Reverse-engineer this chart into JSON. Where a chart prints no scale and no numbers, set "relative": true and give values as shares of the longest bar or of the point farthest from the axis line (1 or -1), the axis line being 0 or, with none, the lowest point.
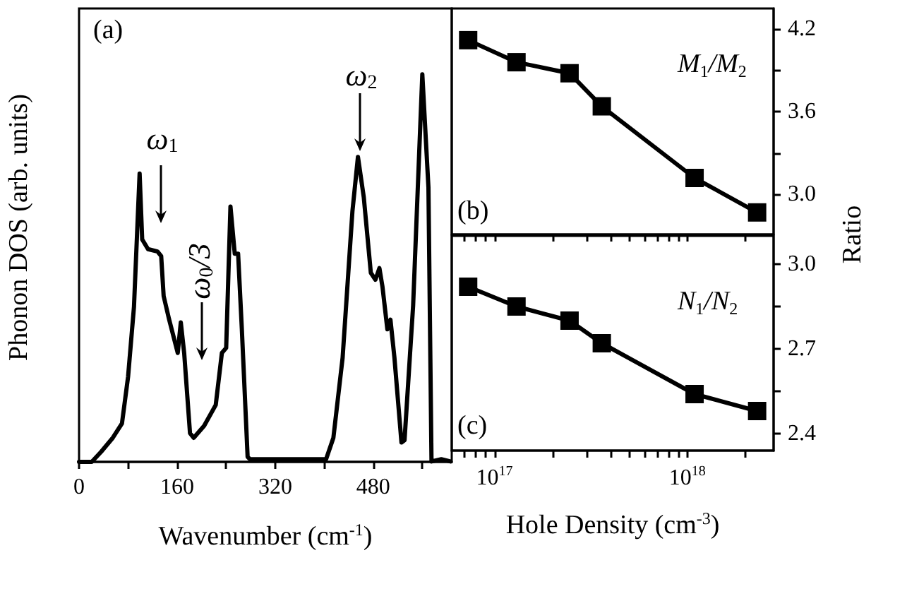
{
  "chart_data": [
    {
      "type": "line",
      "relative": true,
      "xlabel": "Wavenumber (cm$^{-1}$)",
      "ylabel": "Phonon DOS (arb. units)",
      "xlim": [
        0,
        608
      ],
      "xticks": [
        0,
        {
          "value": 80,
          "label": null
        },
        160,
        {
          "value": 240,
          "label": null
        },
        320,
        {
          "value": 400,
          "label": null
        },
        480,
        {
          "value": 560,
          "label": null
        }
      ],
      "tick_labels": "x",
      "marker": "none",
      "line_style": "solid",
      "annotations": [
        "(a)",
        "ω$_{1}$",
        "ω$_{0}$/3",
        "ω$_{2}$"
      ],
      "series": [
        {
          "color": "#000000",
          "x": [
            0,
            20.7,
            36,
            55,
            70,
            80,
            89.6,
            98.8,
            103,
            112.5,
            128,
            134,
            138,
            147,
            161,
            166,
            171.5,
            181,
            187,
            204,
            223,
            233,
            240,
            247,
            254,
            259.5,
            265.6,
            275,
            278.7,
            403,
            414.9,
            430,
            446,
            455,
            464.5,
            476,
            483.5,
            490,
            495,
            503,
            508,
            514.5,
            526,
            531,
            545,
            560,
            570,
            575,
            591,
            606
          ],
          "values": [
            0,
            0,
            0.026,
            0.062,
            0.099,
            0.22,
            0.4,
            0.744,
            0.574,
            0.549,
            0.543,
            0.531,
            0.428,
            0.367,
            0.281,
            0.36,
            0.281,
            0.074,
            0.062,
            0.093,
            0.147,
            0.281,
            0.294,
            0.659,
            0.537,
            0.537,
            0.342,
            0.013,
            0.007,
            0.007,
            0.062,
            0.269,
            0.647,
            0.787,
            0.683,
            0.488,
            0.47,
            0.5,
            0.452,
            0.342,
            0.367,
            0.269,
            0.05,
            0.056,
            0.403,
            1,
            0.708,
            0.001,
            0.007,
            0.001
          ]
        }
      ]
    },
    {
      "type": "line",
      "log": "x",
      "xlim": [
        6e+16,
        2.8e+18
      ],
      "xticks": [
        {
          "value": 7e+16,
          "label": null
        },
        {
          "value": 8e+16,
          "label": null
        },
        {
          "value": 9e+16,
          "label": null
        },
        {
          "value": 1e+17,
          "label": null
        },
        {
          "value": 2e+17,
          "label": null
        },
        {
          "value": 3e+17,
          "label": null
        },
        {
          "value": 4e+17,
          "label": null
        },
        {
          "value": 5e+17,
          "label": null
        },
        {
          "value": 6e+17,
          "label": null
        },
        {
          "value": 7e+17,
          "label": null
        },
        {
          "value": 8e+17,
          "label": null
        },
        {
          "value": 9e+17,
          "label": null
        },
        {
          "value": 1e+18,
          "label": null
        },
        {
          "value": 2e+18,
          "label": null
        }
      ],
      "ylim": [
        2.71,
        4.35
      ],
      "yticks": [
        {
          "value": 3,
          "label": "3.0"
        },
        {
          "value": 3.3,
          "label": null
        },
        3.6,
        {
          "value": 3.9,
          "label": null
        },
        4.2
      ],
      "ylabel": "Ratio",
      "tick_labels": "y",
      "marker": "square",
      "line_style": "solid",
      "annotations": [
        "(b)",
        "M$_{1}$/M$_{2}$"
      ],
      "series": [
        {
          "color": "#000000",
          "x": [
            7.3e+16,
            1.3e+17,
            2.45e+17,
            3.6e+17,
            1.09e+18,
            2.3e+18
          ],
          "values": [
            4.12,
            3.96,
            3.88,
            3.64,
            3.12,
            2.87
          ]
        }
      ]
    },
    {
      "type": "line",
      "log": "x",
      "xlabel": "Hole Density (cm$^{-3}$)",
      "xlim": [
        6e+16,
        2.8e+18
      ],
      "xticks": [
        {
          "value": 7e+16,
          "label": null
        },
        {
          "value": 8e+16,
          "label": null
        },
        {
          "value": 9e+16,
          "label": null
        },
        {
          "value": 1e+17,
          "label": "10$^{17}$"
        },
        {
          "value": 2e+17,
          "label": null
        },
        {
          "value": 3e+17,
          "label": null
        },
        {
          "value": 4e+17,
          "label": null
        },
        {
          "value": 5e+17,
          "label": null
        },
        {
          "value": 6e+17,
          "label": null
        },
        {
          "value": 7e+17,
          "label": null
        },
        {
          "value": 8e+17,
          "label": null
        },
        {
          "value": 9e+17,
          "label": null
        },
        {
          "value": 1e+18,
          "label": "10$^{18}$"
        },
        {
          "value": 2e+18,
          "label": null
        }
      ],
      "ylim": [
        2.34,
        3.1
      ],
      "yticks": [
        2.4,
        {
          "value": 2.55,
          "label": null
        },
        2.7,
        {
          "value": 2.85,
          "label": null
        },
        {
          "value": 3,
          "label": "3.0"
        }
      ],
      "marker": "square",
      "line_style": "solid",
      "annotations": [
        "(c)",
        "N$_{1}$/N$_{2}$"
      ],
      "series": [
        {
          "color": "#000000",
          "x": [
            7.3e+16,
            1.3e+17,
            2.45e+17,
            3.6e+17,
            1.09e+18,
            2.3e+18
          ],
          "values": [
            2.92,
            2.85,
            2.8,
            2.72,
            2.54,
            2.48
          ]
        }
      ]
    }
  ]
}
